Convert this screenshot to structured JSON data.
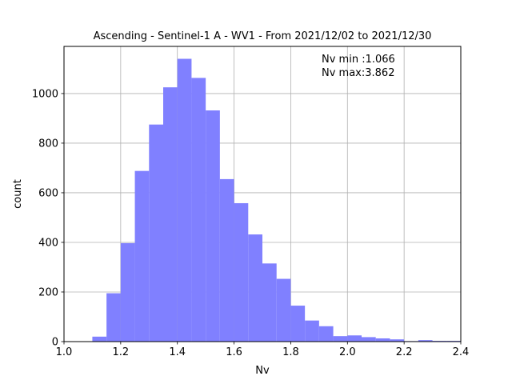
{
  "chart_data": {
    "type": "bar",
    "title": "Ascending - Sentinel-1 A - WV1 - From 2021/12/02 to 2021/12/30",
    "xlabel": "Nv",
    "ylabel": "count",
    "xlim": [
      1.0,
      2.4
    ],
    "ylim": [
      0,
      1190
    ],
    "xticks": [
      "1.0",
      "1.2",
      "1.4",
      "1.6",
      "1.8",
      "2.0",
      "2.2",
      "2.4"
    ],
    "yticks": [
      "0",
      "200",
      "400",
      "600",
      "800",
      "1000"
    ],
    "grid": true,
    "bar_color": "#8080ff",
    "annotations": [
      "Nv min :1.066",
      "Nv max:3.862"
    ],
    "bins": [
      {
        "x0": 1.1,
        "x1": 1.15,
        "count": 20
      },
      {
        "x0": 1.15,
        "x1": 1.2,
        "count": 195
      },
      {
        "x0": 1.2,
        "x1": 1.25,
        "count": 397
      },
      {
        "x0": 1.25,
        "x1": 1.3,
        "count": 688
      },
      {
        "x0": 1.3,
        "x1": 1.35,
        "count": 875
      },
      {
        "x0": 1.35,
        "x1": 1.4,
        "count": 1025
      },
      {
        "x0": 1.4,
        "x1": 1.45,
        "count": 1140
      },
      {
        "x0": 1.45,
        "x1": 1.5,
        "count": 1063
      },
      {
        "x0": 1.5,
        "x1": 1.55,
        "count": 932
      },
      {
        "x0": 1.55,
        "x1": 1.6,
        "count": 655
      },
      {
        "x0": 1.6,
        "x1": 1.65,
        "count": 558
      },
      {
        "x0": 1.65,
        "x1": 1.7,
        "count": 432
      },
      {
        "x0": 1.7,
        "x1": 1.75,
        "count": 315
      },
      {
        "x0": 1.75,
        "x1": 1.8,
        "count": 253
      },
      {
        "x0": 1.8,
        "x1": 1.85,
        "count": 145
      },
      {
        "x0": 1.85,
        "x1": 1.9,
        "count": 85
      },
      {
        "x0": 1.9,
        "x1": 1.95,
        "count": 62
      },
      {
        "x0": 1.95,
        "x1": 2.0,
        "count": 22
      },
      {
        "x0": 2.0,
        "x1": 2.05,
        "count": 25
      },
      {
        "x0": 2.05,
        "x1": 2.1,
        "count": 18
      },
      {
        "x0": 2.1,
        "x1": 2.15,
        "count": 13
      },
      {
        "x0": 2.15,
        "x1": 2.2,
        "count": 9
      },
      {
        "x0": 2.2,
        "x1": 2.25,
        "count": 2
      },
      {
        "x0": 2.25,
        "x1": 2.3,
        "count": 6
      },
      {
        "x0": 2.3,
        "x1": 2.35,
        "count": 3
      },
      {
        "x0": 2.35,
        "x1": 2.4,
        "count": 3
      }
    ]
  }
}
